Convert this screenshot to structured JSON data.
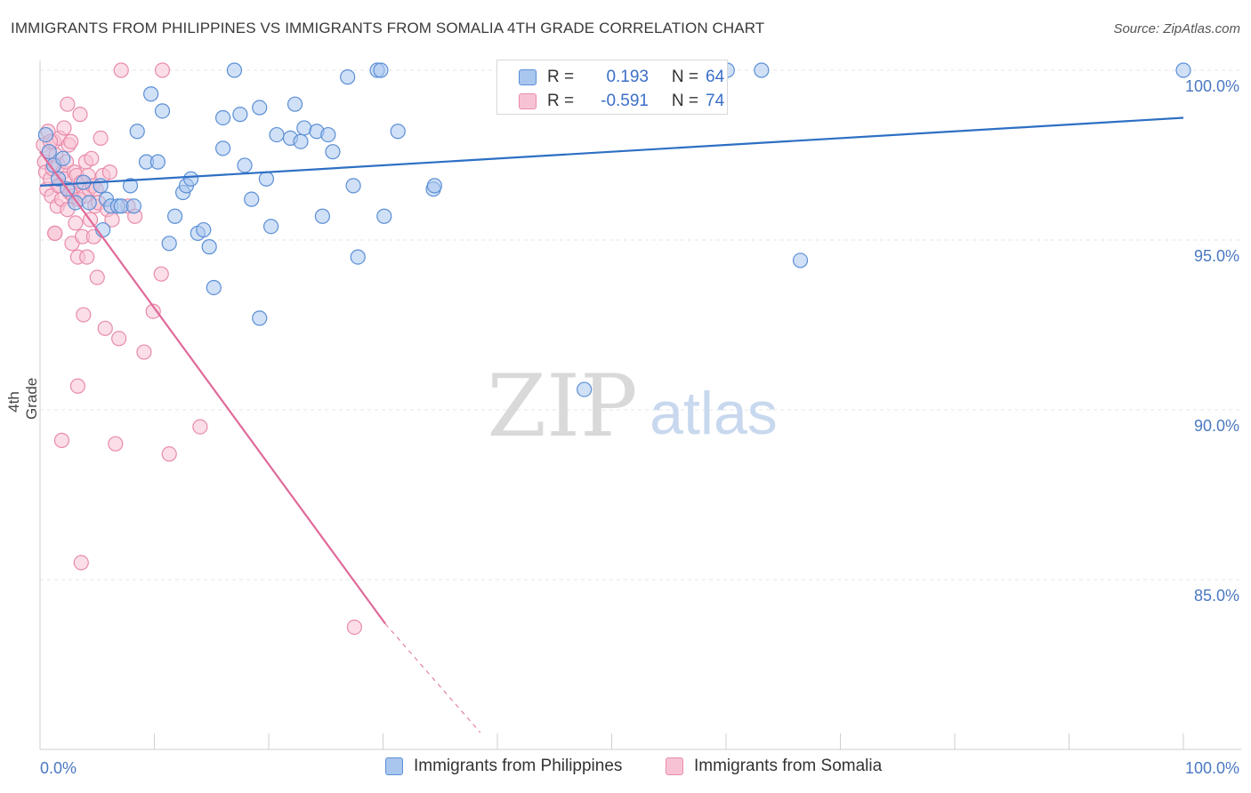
{
  "header": {
    "title": "IMMIGRANTS FROM PHILIPPINES VS IMMIGRANTS FROM SOMALIA 4TH GRADE CORRELATION CHART",
    "source": "Source: ZipAtlas.com"
  },
  "watermark": {
    "zip": "ZIP",
    "atlas": "atlas"
  },
  "legend_top": {
    "rows": [
      {
        "r_label": "R =",
        "r_value": "0.193",
        "n_label": "N =",
        "n_value": "64"
      },
      {
        "r_label": "R =",
        "r_value": "-0.591",
        "n_label": "N =",
        "n_value": "74"
      }
    ]
  },
  "legend_bottom": {
    "items": [
      {
        "label": "Immigrants from Philippines"
      },
      {
        "label": "Immigrants from Somalia"
      }
    ]
  },
  "axes": {
    "x_min_label": "0.0%",
    "x_max_label": "100.0%",
    "y_tick_labels": [
      "100.0%",
      "95.0%",
      "90.0%",
      "85.0%"
    ]
  },
  "colors": {
    "philippines_fill": "#a9c6ee",
    "philippines_stroke": "#5b8fd6",
    "philippines_line": "#2d6fc4",
    "somalia_fill": "#f7c3d4",
    "somalia_stroke": "#e98bab",
    "somalia_line": "#e0699a"
  },
  "chart_data": {
    "type": "scatter",
    "title": "IMMIGRANTS FROM PHILIPPINES VS IMMIGRANTS FROM SOMALIA 4TH GRADE CORRELATION CHART",
    "xlabel": "",
    "ylabel": "4th Grade",
    "xlim": [
      0,
      100
    ],
    "ylim": [
      80.5,
      100.8
    ],
    "yticks": [
      100,
      95,
      90,
      85
    ],
    "grid": true,
    "legend_position": "bottom",
    "series": [
      {
        "name": "Immigrants from Philippines",
        "r": 0.193,
        "n": 64,
        "trend": {
          "x": [
            0,
            100
          ],
          "y": [
            96.6,
            98.6
          ]
        },
        "points": [
          [
            0.5,
            98.1
          ],
          [
            0.8,
            97.6
          ],
          [
            1.2,
            97.2
          ],
          [
            1.6,
            96.8
          ],
          [
            2.0,
            97.4
          ],
          [
            2.4,
            96.5
          ],
          [
            3.1,
            96.1
          ],
          [
            3.8,
            96.7
          ],
          [
            4.3,
            96.1
          ],
          [
            5.3,
            96.6
          ],
          [
            5.5,
            95.3
          ],
          [
            5.8,
            96.2
          ],
          [
            6.2,
            96.0
          ],
          [
            6.8,
            96.0
          ],
          [
            7.1,
            96.0
          ],
          [
            7.9,
            96.6
          ],
          [
            8.2,
            96.0
          ],
          [
            8.5,
            98.2
          ],
          [
            9.3,
            97.3
          ],
          [
            9.7,
            99.3
          ],
          [
            10.3,
            97.3
          ],
          [
            10.7,
            98.8
          ],
          [
            11.3,
            94.9
          ],
          [
            11.8,
            95.7
          ],
          [
            12.5,
            96.4
          ],
          [
            12.8,
            96.6
          ],
          [
            13.2,
            96.8
          ],
          [
            13.8,
            95.2
          ],
          [
            14.3,
            95.3
          ],
          [
            14.8,
            94.8
          ],
          [
            15.2,
            93.6
          ],
          [
            16.0,
            97.7
          ],
          [
            16.0,
            98.6
          ],
          [
            17.0,
            100.0
          ],
          [
            17.5,
            98.7
          ],
          [
            17.9,
            97.2
          ],
          [
            18.5,
            96.2
          ],
          [
            19.2,
            98.9
          ],
          [
            19.2,
            92.7
          ],
          [
            19.8,
            96.8
          ],
          [
            20.2,
            95.4
          ],
          [
            20.7,
            98.1
          ],
          [
            21.9,
            98.0
          ],
          [
            22.3,
            99.0
          ],
          [
            22.8,
            97.9
          ],
          [
            23.1,
            98.3
          ],
          [
            24.2,
            98.2
          ],
          [
            24.7,
            95.7
          ],
          [
            25.2,
            98.1
          ],
          [
            25.6,
            97.6
          ],
          [
            26.9,
            99.8
          ],
          [
            27.4,
            96.6
          ],
          [
            27.8,
            94.5
          ],
          [
            29.5,
            100.0
          ],
          [
            29.8,
            100.0
          ],
          [
            30.1,
            95.7
          ],
          [
            31.3,
            98.2
          ],
          [
            34.4,
            96.5
          ],
          [
            34.5,
            96.6
          ],
          [
            47.6,
            90.6
          ],
          [
            60.1,
            100.0
          ],
          [
            63.1,
            100.0
          ],
          [
            66.5,
            94.4
          ],
          [
            100.0,
            100.0
          ]
        ]
      },
      {
        "name": "Immigrants from Somalia",
        "r": -0.591,
        "n": 74,
        "trend": {
          "x": [
            0,
            30.2
          ],
          "y": [
            97.6,
            83.7
          ]
        },
        "trend_extension": {
          "x": [
            30.2,
            38.5
          ],
          "y": [
            83.7,
            80.5
          ]
        },
        "points": [
          [
            0.3,
            97.8
          ],
          [
            0.4,
            97.3
          ],
          [
            0.5,
            97.0
          ],
          [
            0.6,
            96.5
          ],
          [
            0.7,
            98.2
          ],
          [
            0.8,
            97.6
          ],
          [
            0.9,
            96.8
          ],
          [
            1.0,
            96.3
          ],
          [
            1.1,
            97.1
          ],
          [
            1.2,
            97.9
          ],
          [
            1.3,
            95.2
          ],
          [
            1.4,
            97.5
          ],
          [
            1.5,
            96.0
          ],
          [
            1.6,
            97.2
          ],
          [
            1.7,
            98.0
          ],
          [
            1.8,
            96.6
          ],
          [
            1.9,
            96.2
          ],
          [
            2.0,
            97.0
          ],
          [
            2.1,
            98.3
          ],
          [
            2.2,
            96.8
          ],
          [
            2.3,
            97.3
          ],
          [
            2.4,
            95.9
          ],
          [
            2.5,
            97.8
          ],
          [
            2.6,
            96.4
          ],
          [
            2.7,
            97.9
          ],
          [
            2.8,
            94.9
          ],
          [
            2.9,
            96.3
          ],
          [
            3.0,
            97.0
          ],
          [
            3.1,
            95.5
          ],
          [
            3.2,
            96.9
          ],
          [
            3.3,
            94.5
          ],
          [
            3.4,
            96.2
          ],
          [
            3.5,
            98.7
          ],
          [
            3.6,
            96.7
          ],
          [
            3.7,
            95.1
          ],
          [
            3.8,
            92.8
          ],
          [
            3.9,
            96.3
          ],
          [
            4.0,
            97.3
          ],
          [
            4.1,
            94.5
          ],
          [
            4.2,
            96.9
          ],
          [
            4.3,
            96.5
          ],
          [
            4.4,
            95.6
          ],
          [
            4.5,
            97.4
          ],
          [
            4.6,
            96.6
          ],
          [
            4.7,
            95.1
          ],
          [
            4.8,
            96.0
          ],
          [
            4.9,
            96.5
          ],
          [
            5.0,
            93.9
          ],
          [
            5.1,
            96.1
          ],
          [
            5.3,
            98.0
          ],
          [
            5.5,
            96.9
          ],
          [
            5.7,
            92.4
          ],
          [
            5.9,
            95.9
          ],
          [
            6.1,
            97.0
          ],
          [
            6.3,
            95.6
          ],
          [
            6.6,
            89.0
          ],
          [
            6.9,
            92.1
          ],
          [
            7.1,
            100.0
          ],
          [
            7.7,
            96.0
          ],
          [
            8.3,
            95.7
          ],
          [
            9.1,
            91.7
          ],
          [
            9.9,
            92.9
          ],
          [
            10.6,
            94.0
          ],
          [
            10.7,
            100.0
          ],
          [
            11.3,
            88.7
          ],
          [
            14.0,
            89.5
          ],
          [
            1.9,
            89.1
          ],
          [
            3.3,
            90.7
          ],
          [
            3.6,
            85.5
          ],
          [
            27.5,
            83.6
          ],
          [
            1.3,
            95.2
          ],
          [
            2.4,
            99.0
          ],
          [
            1.6,
            96.6
          ],
          [
            0.9,
            97.9
          ]
        ]
      }
    ]
  }
}
